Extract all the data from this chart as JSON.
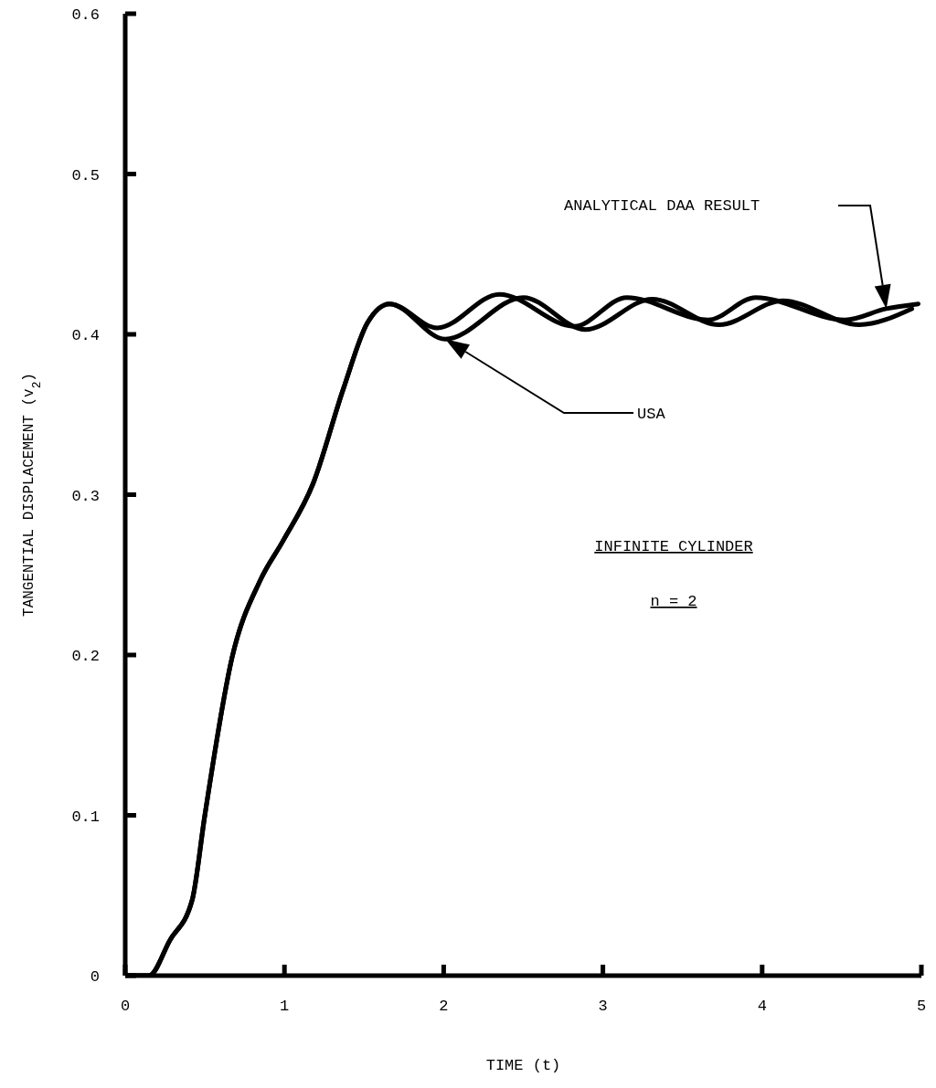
{
  "chart_data": {
    "type": "line",
    "xlabel": "TIME (t)",
    "ylabel": "TANGENTIAL DISPLACEMENT (v$_{2}$)",
    "xlim": [
      0,
      5
    ],
    "ylim": [
      0,
      0.6
    ],
    "xticks": [
      0,
      1,
      2,
      3,
      4,
      5
    ],
    "yticks": [
      0,
      0.1,
      0.2,
      0.3,
      0.4,
      0.5,
      0.6
    ],
    "marker": "none",
    "line_style": "solid",
    "annotations": [
      "ANALYTICAL DAA RESULT",
      "USA",
      "INFINITE CYLINDER",
      "n = 2"
    ],
    "series": [
      {
        "color": "#000000",
        "x": [
          0,
          0.15,
          0.28,
          0.42,
          0.5,
          0.67,
          0.85,
          0.99,
          1.18,
          1.37,
          1.52,
          1.66,
          1.96,
          2.35,
          2.82,
          3.15,
          3.66,
          3.96,
          4.52,
          4.78,
          4.98
        ],
        "values": [
          0,
          0,
          0.022,
          0.047,
          0.1,
          0.198,
          0.247,
          0.271,
          0.307,
          0.366,
          0.407,
          0.419,
          0.404,
          0.425,
          0.405,
          0.423,
          0.409,
          0.423,
          0.409,
          0.416,
          0.419
        ]
      },
      {
        "color": "#000000",
        "x": [
          0,
          0.15,
          0.28,
          0.42,
          0.5,
          0.67,
          0.85,
          0.99,
          1.18,
          1.37,
          1.52,
          1.66,
          2.01,
          2.5,
          2.89,
          3.31,
          3.73,
          4.13,
          4.61,
          4.94
        ],
        "values": [
          0,
          0,
          0.022,
          0.047,
          0.1,
          0.198,
          0.247,
          0.271,
          0.307,
          0.366,
          0.407,
          0.419,
          0.397,
          0.423,
          0.403,
          0.422,
          0.406,
          0.421,
          0.406,
          0.416
        ]
      }
    ]
  }
}
